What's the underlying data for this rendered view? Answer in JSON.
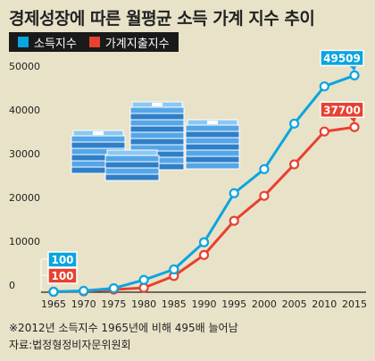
{
  "title": "경제성장에 따른 월평균 소득 가계 지수 추이",
  "note": "※2012년 소득지수 1965년에 비해 495배 늘어남",
  "source": "자료:법정형정비자문위원회",
  "colors": {
    "background": "#e8e2c8",
    "income": "#0aa5e0",
    "expenditure": "#e8412f",
    "legend_bg": "#1a1a1a"
  },
  "icons": [
    "money-stack-icon"
  ],
  "chart_data": {
    "type": "line",
    "title": "경제성장에 따른 월평균 소득 가계 지수 추이",
    "xlabel": "",
    "ylabel": "",
    "x": [
      "1965",
      "1970",
      "1975",
      "1980",
      "1985",
      "1990",
      "1995",
      "2000",
      "2005",
      "2010",
      "2015"
    ],
    "yticks": [
      "0",
      "10000",
      "20000",
      "30000",
      "40000",
      "50000"
    ],
    "ylim": [
      0,
      50000
    ],
    "grid": false,
    "legend": "top-left",
    "series": [
      {
        "name": "소득지수",
        "color": "#0aa5e0",
        "values": [
          100,
          300,
          900,
          2800,
          5200,
          11400,
          22600,
          28100,
          38500,
          47000,
          49509
        ],
        "callouts": [
          {
            "index": 0,
            "label": "100"
          },
          {
            "index": 10,
            "label": "49509"
          }
        ]
      },
      {
        "name": "가계지출지수",
        "color": "#e8412f",
        "values": [
          100,
          200,
          600,
          1000,
          3700,
          8500,
          16300,
          22000,
          29200,
          36700,
          37700
        ],
        "callouts": [
          {
            "index": 0,
            "label": "100"
          },
          {
            "index": 10,
            "label": "37700"
          }
        ]
      }
    ]
  }
}
